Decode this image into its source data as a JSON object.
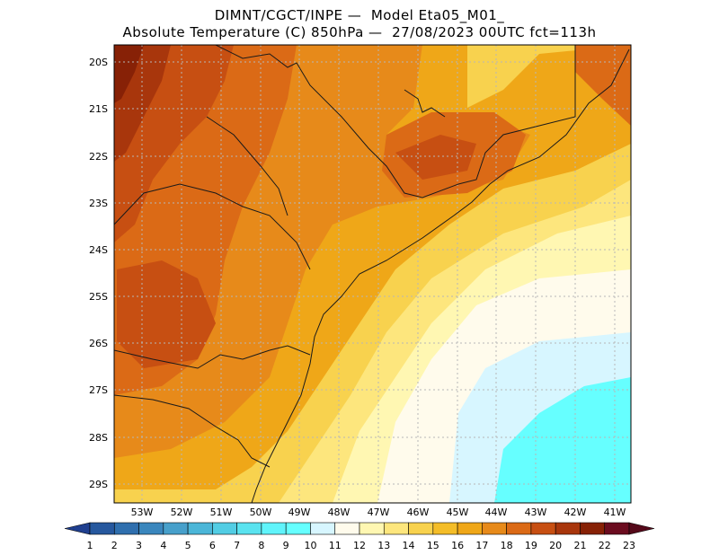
{
  "title": {
    "line1": "DIMNT/CGCT/INPE —  Model Eta05_M01_",
    "line2": "Absolute Temperature (C) 850hPa —  27/08/2023 00UTC fct=113h"
  },
  "axes": {
    "lon_labels": [
      "53W",
      "52W",
      "51W",
      "50W",
      "49W",
      "48W",
      "47W",
      "46W",
      "45W",
      "44W",
      "43W",
      "42W",
      "41W"
    ],
    "lat_labels": [
      "20S",
      "21S",
      "22S",
      "23S",
      "24S",
      "25S",
      "26S",
      "27S",
      "28S",
      "29S"
    ]
  },
  "colorbar": {
    "labels": [
      "1",
      "2",
      "3",
      "4",
      "5",
      "6",
      "7",
      "8",
      "9",
      "10",
      "11",
      "12",
      "13",
      "14",
      "15",
      "16",
      "17",
      "18",
      "19",
      "20",
      "21",
      "22",
      "23"
    ],
    "colors": [
      "#1f3f8f",
      "#26589e",
      "#2f6fae",
      "#3a86bd",
      "#47a0cb",
      "#4bb6d8",
      "#52cde4",
      "#5ae3ef",
      "#60f4fb",
      "#66ffff",
      "#d7f6ff",
      "#fffbec",
      "#fff7b2",
      "#fde67d",
      "#f8d24e",
      "#f4bd28",
      "#efa718",
      "#e78a1a",
      "#db6a16",
      "#c74f12",
      "#a8360c",
      "#872106",
      "#6b0c1f",
      "#55091a"
    ]
  },
  "chart_data": {
    "type": "heatmap",
    "title": "Absolute Temperature (C) 850hPa",
    "model": "Model Eta05_M01_",
    "source": "DIMNT/CGCT/INPE",
    "valid": "27/08/2023 00UTC",
    "forecast_hour": "fct=113h",
    "units": "C",
    "lon_range": [
      -53.6,
      -40.5
    ],
    "lat_range": [
      -29.4,
      -19.9
    ],
    "contour_levels": [
      1,
      2,
      3,
      4,
      5,
      6,
      7,
      8,
      9,
      10,
      11,
      12,
      13,
      14,
      15,
      16,
      17,
      18,
      19,
      20,
      21,
      22,
      23
    ],
    "regions": [
      {
        "lon": -53.3,
        "lat": -20.2,
        "value": 22
      },
      {
        "lon": -52.5,
        "lat": -21.5,
        "value": 20
      },
      {
        "lon": -51.0,
        "lat": -21.8,
        "value": 18
      },
      {
        "lon": -45.2,
        "lat": -22.0,
        "value": 19
      },
      {
        "lon": -46.5,
        "lat": -24.8,
        "value": 15
      },
      {
        "lon": -44.0,
        "lat": -26.5,
        "value": 11
      },
      {
        "lon": -43.0,
        "lat": -28.5,
        "value": 9
      },
      {
        "lon": -41.5,
        "lat": -20.5,
        "value": 19
      }
    ]
  }
}
